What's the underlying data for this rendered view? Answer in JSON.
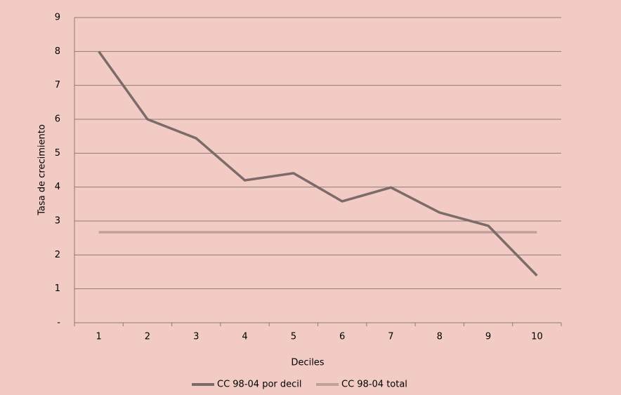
{
  "chart_data": {
    "type": "line",
    "x_label": "Deciles",
    "y_label": "Tasa de crecimiento",
    "categories": [
      "1",
      "2",
      "3",
      "4",
      "5",
      "6",
      "7",
      "8",
      "9",
      "10"
    ],
    "series": [
      {
        "name": "CC 98-04 por decil",
        "color": "#7d6b69",
        "values": [
          8.0,
          6.0,
          5.44,
          4.2,
          4.41,
          3.58,
          3.99,
          3.25,
          2.86,
          1.39
        ]
      },
      {
        "name": "CC 98-04 total",
        "color": "#c0a09c",
        "values": [
          2.67,
          2.67,
          2.67,
          2.67,
          2.67,
          2.67,
          2.67,
          2.67,
          2.67,
          2.67
        ]
      }
    ],
    "ylim": [
      0,
      9
    ],
    "yticks": [
      {
        "value": 0,
        "label": "-"
      },
      1,
      2,
      3,
      4,
      5,
      6,
      7,
      8,
      9
    ],
    "grid": true,
    "legend": "bottom"
  }
}
